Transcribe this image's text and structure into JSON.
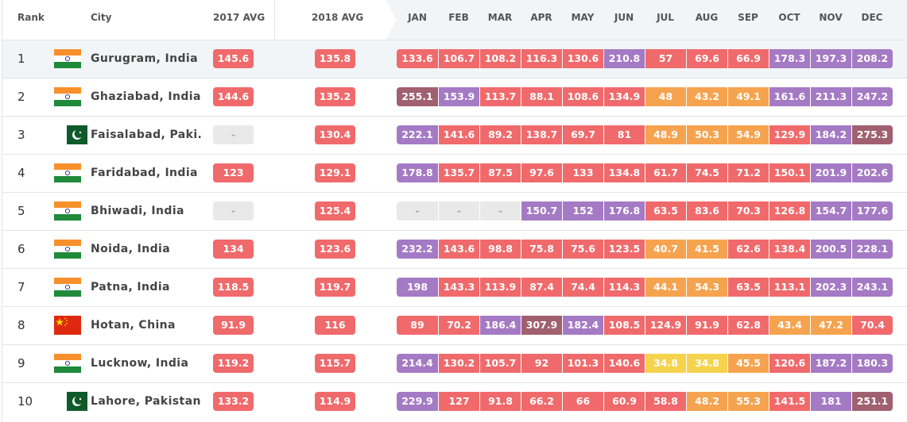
{
  "header": {
    "rank": "Rank",
    "city": "City",
    "avg2017": "2017 AVG",
    "avg2018": "2018 AVG",
    "months": [
      "JAN",
      "FEB",
      "MAR",
      "APR",
      "MAY",
      "JUN",
      "JUL",
      "AUG",
      "SEP",
      "OCT",
      "NOV",
      "DEC"
    ]
  },
  "rows": [
    {
      "rank": 1,
      "city": "Gurugram, India",
      "avg2017": 145.6,
      "avg2018": 135.8,
      "months": [
        133.6,
        106.7,
        108.2,
        116.3,
        130.6,
        210.8,
        57,
        69.6,
        66.9,
        178.3,
        197.3,
        208.2
      ]
    },
    {
      "rank": 2,
      "city": "Ghaziabad, India",
      "avg2017": 144.6,
      "avg2018": 135.2,
      "months": [
        255.1,
        153.9,
        113.7,
        88.1,
        108.6,
        134.9,
        48,
        43.2,
        49.1,
        161.6,
        211.3,
        247.2
      ]
    },
    {
      "rank": 3,
      "city": "Faisalabad, Paki...",
      "avg2017": "-",
      "avg2018": 130.4,
      "months": [
        222.1,
        141.6,
        89.2,
        138.7,
        69.7,
        81,
        48.9,
        50.3,
        54.9,
        129.9,
        184.2,
        275.3
      ]
    },
    {
      "rank": 4,
      "city": "Faridabad, India",
      "avg2017": 123,
      "avg2018": 129.1,
      "months": [
        178.8,
        135.7,
        87.5,
        97.6,
        133,
        134.8,
        61.7,
        74.5,
        71.2,
        150.1,
        201.9,
        202.6
      ]
    },
    {
      "rank": 5,
      "city": "Bhiwadi, India",
      "avg2017": "-",
      "avg2018": 125.4,
      "months": [
        "-",
        "-",
        "-",
        150.7,
        152,
        176.8,
        63.5,
        83.6,
        70.3,
        126.8,
        154.7,
        177.6
      ]
    },
    {
      "rank": 6,
      "city": "Noida, India",
      "avg2017": 134,
      "avg2018": 123.6,
      "months": [
        232.2,
        143.6,
        98.8,
        75.8,
        75.6,
        123.5,
        40.7,
        41.5,
        62.6,
        138.4,
        200.5,
        228.1
      ]
    },
    {
      "rank": 7,
      "city": "Patna, India",
      "avg2017": 118.5,
      "avg2018": 119.7,
      "months": [
        198,
        143.3,
        113.9,
        87.4,
        74.4,
        114.3,
        44.1,
        54.3,
        63.5,
        113.1,
        202.3,
        243.1
      ]
    },
    {
      "rank": 8,
      "city": "Hotan, China",
      "avg2017": 91.9,
      "avg2018": 116,
      "months": [
        89,
        70.2,
        186.4,
        307.9,
        182.4,
        108.5,
        124.9,
        91.9,
        62.8,
        43.4,
        47.2,
        70.4
      ]
    },
    {
      "rank": 9,
      "city": "Lucknow, India",
      "avg2017": 119.2,
      "avg2018": 115.7,
      "months": [
        214.4,
        130.2,
        105.7,
        92,
        101.3,
        140.6,
        34.8,
        34.8,
        45.5,
        120.6,
        187.2,
        180.3
      ]
    },
    {
      "rank": 10,
      "city": "Lahore, Pakistan",
      "avg2017": 133.2,
      "avg2018": 114.9,
      "months": [
        229.9,
        127,
        91.8,
        66.2,
        66,
        60.9,
        58.8,
        48.2,
        55.3,
        141.5,
        181,
        251.1
      ]
    }
  ]
}
